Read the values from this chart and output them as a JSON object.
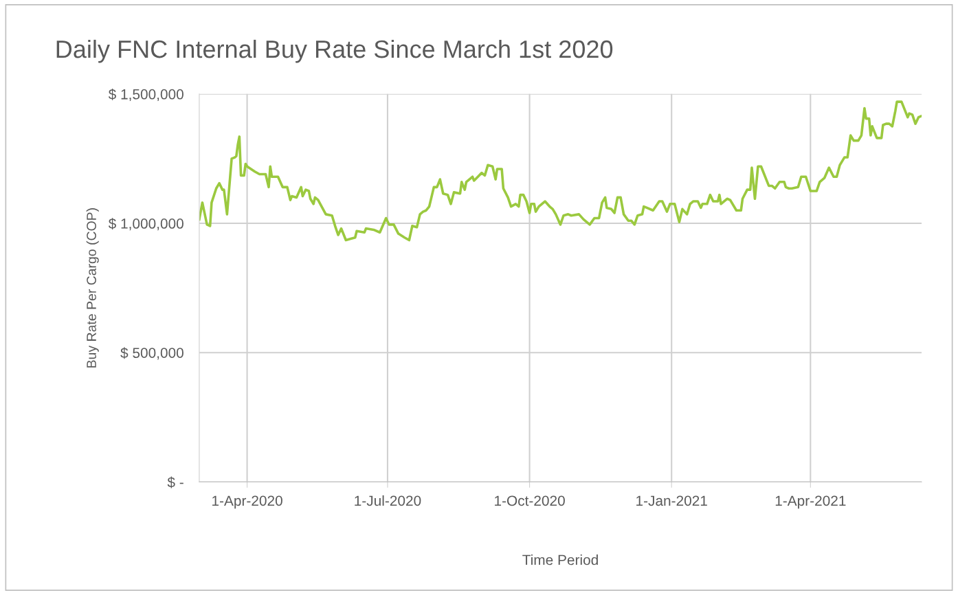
{
  "chart_data": {
    "type": "line",
    "title": "Daily FNC Internal Buy Rate Since March 1st 2020",
    "xlabel": "Time Period",
    "ylabel": "Buy Rate Per Cargo (COP)",
    "x": [
      "2020-03-01",
      "2020-03-03",
      "2020-03-06",
      "2020-03-08",
      "2020-03-09",
      "2020-03-12",
      "2020-03-14",
      "2020-03-16",
      "2020-03-17",
      "2020-03-19",
      "2020-03-21",
      "2020-03-22",
      "2020-03-24",
      "2020-03-25",
      "2020-03-26",
      "2020-03-27",
      "2020-03-28",
      "2020-03-30",
      "2020-03-31",
      "2020-04-01",
      "2020-04-06",
      "2020-04-09",
      "2020-04-13",
      "2020-04-15",
      "2020-04-16",
      "2020-04-17",
      "2020-04-21",
      "2020-04-24",
      "2020-04-27",
      "2020-04-29",
      "2020-04-30",
      "2020-05-03",
      "2020-05-06",
      "2020-05-07",
      "2020-05-09",
      "2020-05-11",
      "2020-05-12",
      "2020-05-14",
      "2020-05-15",
      "2020-05-17",
      "2020-05-22",
      "2020-05-26",
      "2020-05-28",
      "2020-05-30",
      "2020-06-01",
      "2020-06-04",
      "2020-06-10",
      "2020-06-11",
      "2020-06-16",
      "2020-06-17",
      "2020-06-22",
      "2020-06-26",
      "2020-06-30",
      "2020-07-02",
      "2020-07-05",
      "2020-07-08",
      "2020-07-12",
      "2020-07-15",
      "2020-07-17",
      "2020-07-20",
      "2020-07-22",
      "2020-07-24",
      "2020-07-26",
      "2020-07-28",
      "2020-07-31",
      "2020-08-02",
      "2020-08-04",
      "2020-08-06",
      "2020-08-09",
      "2020-08-11",
      "2020-08-13",
      "2020-08-17",
      "2020-08-18",
      "2020-08-20",
      "2020-08-21",
      "2020-08-25",
      "2020-08-26",
      "2020-08-31",
      "2020-09-02",
      "2020-09-04",
      "2020-09-07",
      "2020-09-09",
      "2020-09-10",
      "2020-09-13",
      "2020-09-14",
      "2020-09-17",
      "2020-09-19",
      "2020-09-22",
      "2020-09-24",
      "2020-09-25",
      "2020-09-27",
      "2020-09-29",
      "2020-10-01",
      "2020-10-02",
      "2020-10-04",
      "2020-10-05",
      "2020-10-07",
      "2020-10-11",
      "2020-10-14",
      "2020-10-16",
      "2020-10-18",
      "2020-10-21",
      "2020-10-23",
      "2020-10-26",
      "2020-10-28",
      "2020-11-02",
      "2020-11-05",
      "2020-11-09",
      "2020-11-12",
      "2020-11-15",
      "2020-11-17",
      "2020-11-19",
      "2020-11-20",
      "2020-11-23",
      "2020-11-25",
      "2020-11-27",
      "2020-11-29",
      "2020-12-01",
      "2020-12-04",
      "2020-12-06",
      "2020-12-08",
      "2020-12-10",
      "2020-12-13",
      "2020-12-14",
      "2020-12-16",
      "2020-12-20",
      "2020-12-24",
      "2020-12-26",
      "2020-12-29",
      "2020-12-31",
      "2021-01-03",
      "2021-01-06",
      "2021-01-08",
      "2021-01-11",
      "2021-01-13",
      "2021-01-15",
      "2021-01-18",
      "2021-01-20",
      "2021-01-21",
      "2021-01-24",
      "2021-01-26",
      "2021-01-28",
      "2021-01-31",
      "2021-02-01",
      "2021-02-02",
      "2021-02-06",
      "2021-02-08",
      "2021-02-12",
      "2021-02-15",
      "2021-02-16",
      "2021-02-19",
      "2021-02-21",
      "2021-02-22",
      "2021-02-24",
      "2021-02-26",
      "2021-02-28",
      "2021-03-02",
      "2021-03-05",
      "2021-03-07",
      "2021-03-09",
      "2021-03-12",
      "2021-03-15",
      "2021-03-16",
      "2021-03-18",
      "2021-03-20",
      "2021-03-24",
      "2021-03-26",
      "2021-03-29",
      "2021-04-01",
      "2021-04-05",
      "2021-04-07",
      "2021-04-10",
      "2021-04-13",
      "2021-04-16",
      "2021-04-18",
      "2021-04-20",
      "2021-04-23",
      "2021-04-25",
      "2021-04-27",
      "2021-04-29",
      "2021-05-02",
      "2021-05-04",
      "2021-05-06",
      "2021-05-07",
      "2021-05-09",
      "2021-05-10",
      "2021-05-11",
      "2021-05-14",
      "2021-05-17",
      "2021-05-18",
      "2021-05-20",
      "2021-05-22",
      "2021-05-24",
      "2021-05-26",
      "2021-05-27",
      "2021-05-30",
      "2021-06-01",
      "2021-06-03",
      "2021-06-04",
      "2021-06-06",
      "2021-06-08",
      "2021-06-10",
      "2021-06-12"
    ],
    "series": [
      {
        "color": "#9bc93f",
        "values": [
          1015000,
          1080000,
          995000,
          990000,
          1080000,
          1135000,
          1155000,
          1130000,
          1130000,
          1035000,
          1180000,
          1250000,
          1255000,
          1260000,
          1305000,
          1335000,
          1185000,
          1185000,
          1230000,
          1220000,
          1200000,
          1190000,
          1190000,
          1140000,
          1220000,
          1180000,
          1180000,
          1140000,
          1140000,
          1090000,
          1105000,
          1100000,
          1140000,
          1105000,
          1130000,
          1125000,
          1095000,
          1075000,
          1100000,
          1090000,
          1035000,
          1030000,
          990000,
          955000,
          980000,
          935000,
          945000,
          970000,
          965000,
          980000,
          975000,
          965000,
          1020000,
          995000,
          995000,
          960000,
          945000,
          935000,
          990000,
          985000,
          1035000,
          1045000,
          1050000,
          1065000,
          1140000,
          1140000,
          1170000,
          1115000,
          1110000,
          1075000,
          1120000,
          1115000,
          1160000,
          1130000,
          1160000,
          1180000,
          1165000,
          1195000,
          1185000,
          1225000,
          1220000,
          1170000,
          1210000,
          1210000,
          1135000,
          1100000,
          1065000,
          1075000,
          1065000,
          1110000,
          1110000,
          1085000,
          1040000,
          1075000,
          1075000,
          1045000,
          1065000,
          1085000,
          1065000,
          1055000,
          1035000,
          995000,
          1030000,
          1035000,
          1030000,
          1035000,
          1015000,
          995000,
          1020000,
          1020000,
          1080000,
          1100000,
          1060000,
          1055000,
          1040000,
          1100000,
          1100000,
          1035000,
          1010000,
          1010000,
          995000,
          1030000,
          1035000,
          1065000,
          1060000,
          1050000,
          1085000,
          1085000,
          1045000,
          1075000,
          1075000,
          1005000,
          1055000,
          1035000,
          1075000,
          1085000,
          1085000,
          1060000,
          1075000,
          1075000,
          1110000,
          1085000,
          1085000,
          1110000,
          1075000,
          1095000,
          1090000,
          1050000,
          1050000,
          1095000,
          1130000,
          1130000,
          1215000,
          1095000,
          1220000,
          1220000,
          1190000,
          1145000,
          1145000,
          1135000,
          1160000,
          1160000,
          1140000,
          1135000,
          1135000,
          1140000,
          1180000,
          1180000,
          1125000,
          1125000,
          1160000,
          1175000,
          1215000,
          1180000,
          1180000,
          1225000,
          1255000,
          1255000,
          1340000,
          1320000,
          1320000,
          1340000,
          1445000,
          1405000,
          1405000,
          1340000,
          1375000,
          1330000,
          1330000,
          1380000,
          1385000,
          1385000,
          1375000,
          1435000,
          1470000,
          1470000,
          1440000,
          1410000,
          1425000,
          1420000,
          1385000,
          1410000,
          1415000
        ]
      }
    ],
    "xlim": [
      "2020-03-01",
      "2021-06-12"
    ],
    "xticks": [
      {
        "value": "2020-04-01",
        "label": "1-Apr-2020"
      },
      {
        "value": "2020-07-01",
        "label": "1-Jul-2020"
      },
      {
        "value": "2020-10-01",
        "label": "1-Oct-2020"
      },
      {
        "value": "2021-01-01",
        "label": "1-Jan-2021"
      },
      {
        "value": "2021-04-01",
        "label": "1-Apr-2021"
      }
    ],
    "ylim": [
      0,
      1500000
    ],
    "yticks": [
      {
        "value": 0,
        "label": "$ -"
      },
      {
        "value": 500000,
        "label": "$ 500,000"
      },
      {
        "value": 1000000,
        "label": "$ 1,000,000"
      },
      {
        "value": 1500000,
        "label": "$ 1,500,000"
      }
    ],
    "grid": true,
    "legend": false,
    "marker": "none",
    "line_style": "solid"
  }
}
